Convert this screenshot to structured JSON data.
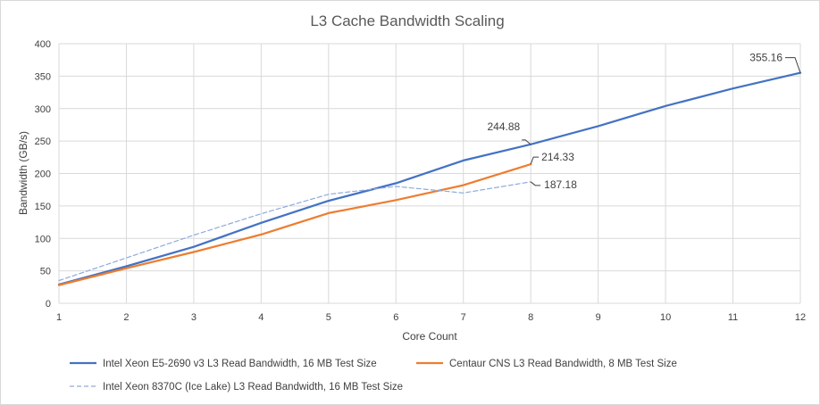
{
  "chart_data": {
    "type": "line",
    "title": "L3 Cache Bandwidth Scaling",
    "xlabel": "Core Count",
    "ylabel": "Bandwidth (GB/s)",
    "xlim": [
      1,
      12
    ],
    "ylim": [
      0,
      400
    ],
    "x_ticks": [
      1,
      2,
      3,
      4,
      5,
      6,
      7,
      8,
      9,
      10,
      11,
      12
    ],
    "y_ticks": [
      0,
      50,
      100,
      150,
      200,
      250,
      300,
      350,
      400
    ],
    "grid": true,
    "legend_position": "bottom",
    "series": [
      {
        "name": "Intel Xeon E5-2690 v3 L3 Read Bandwidth, 16 MB Test Size",
        "color": "#4472c4",
        "style": "solid",
        "x": [
          1,
          2,
          3,
          4,
          5,
          6,
          7,
          8,
          9,
          10,
          11,
          12
        ],
        "values": [
          29,
          57,
          87,
          124,
          158,
          185,
          220,
          244.88,
          273,
          304,
          331,
          355.16
        ]
      },
      {
        "name": "Centaur CNS L3 Read Bandwidth, 8 MB Test Size",
        "color": "#ed7d31",
        "style": "solid",
        "x": [
          1,
          2,
          3,
          4,
          5,
          6,
          7,
          8
        ],
        "values": [
          28,
          54,
          79,
          106,
          139,
          159,
          182,
          214.33
        ]
      },
      {
        "name": "Intel Xeon 8370C (Ice Lake) L3 Read Bandwidth, 16 MB Test Size",
        "color": "#8faadc",
        "style": "dashed",
        "x": [
          1,
          2,
          3,
          4,
          5,
          6,
          7,
          8
        ],
        "values": [
          35,
          70,
          105,
          138,
          168,
          180,
          170,
          187.18
        ]
      }
    ],
    "annotations": [
      {
        "text": "355.16",
        "x": 12,
        "y": 355.16
      },
      {
        "text": "244.88",
        "x": 8,
        "y": 244.88
      },
      {
        "text": "214.33",
        "x": 8,
        "y": 214.33
      },
      {
        "text": "187.18",
        "x": 8,
        "y": 187.18
      }
    ]
  }
}
